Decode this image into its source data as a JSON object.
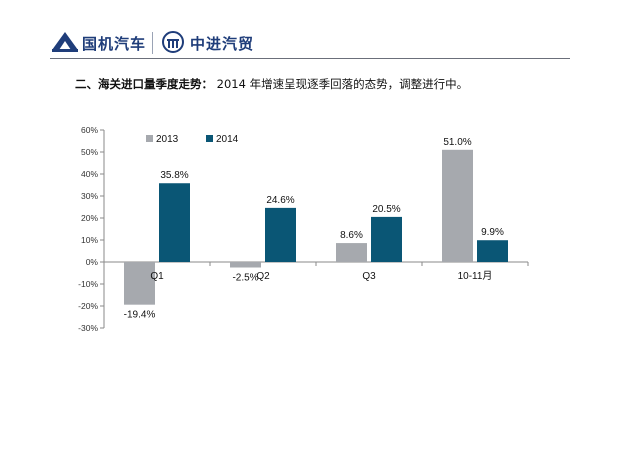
{
  "header": {
    "brand1": "国机汽车",
    "brand2": "中进汽贸",
    "logo1_icon": "mountain-logo-icon",
    "logo2_icon": "circle-gate-logo-icon",
    "brand_color": "#1f3d7a"
  },
  "subtitle": {
    "prefix": "二、海关进口量季度走势：",
    "text": " 2014 年增速呈现逐季回落的态势，调整进行中。"
  },
  "chart_data": {
    "type": "bar",
    "categories": [
      "Q1",
      "Q2",
      "Q3",
      "10-11月"
    ],
    "series": [
      {
        "name": "2013",
        "values": [
          -19.4,
          -2.5,
          8.6,
          51.0
        ],
        "labels": [
          "-19.4%",
          "-2.5%",
          "8.6%",
          "51.0%"
        ],
        "color": "#a6a9ae"
      },
      {
        "name": "2014",
        "values": [
          35.8,
          24.6,
          20.5,
          9.9
        ],
        "labels": [
          "35.8%",
          "24.6%",
          "20.5%",
          "9.9%"
        ],
        "color": "#0a5675"
      }
    ],
    "ylim": [
      -30,
      60
    ],
    "yticks": [
      60,
      50,
      40,
      30,
      20,
      10,
      0,
      -10,
      -20,
      -30
    ],
    "ytick_labels": [
      "60%",
      "50%",
      "40%",
      "30%",
      "20%",
      "10%",
      "0%",
      "-10%",
      "-20%",
      "-30%"
    ],
    "legend_position": "top-left",
    "grid": false,
    "title": "",
    "xlabel": "",
    "ylabel": ""
  }
}
